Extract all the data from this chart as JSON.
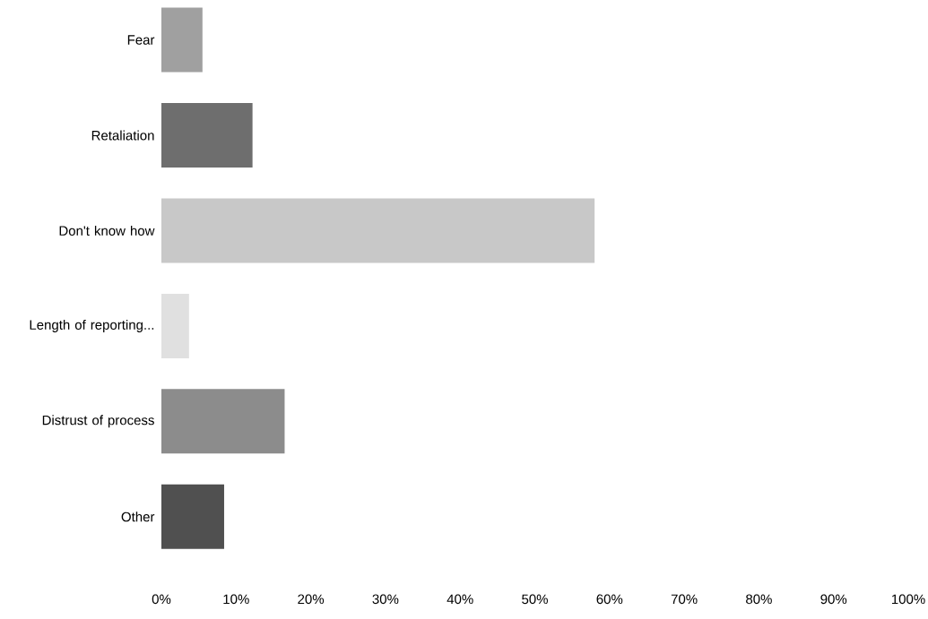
{
  "chart_data": {
    "type": "bar",
    "orientation": "horizontal",
    "categories": [
      "Fear",
      "Retaliation",
      "Don't know how",
      "Length of reporting...",
      "Distrust of process",
      "Other"
    ],
    "values": [
      5.5,
      12.2,
      58,
      3.7,
      16.5,
      8.4
    ],
    "colors": [
      "#a0a0a0",
      "#6e6e6e",
      "#c8c8c8",
      "#e0e0e0",
      "#8c8c8c",
      "#505050"
    ],
    "xlim": [
      0,
      100
    ],
    "xticks": [
      {
        "value": 0,
        "label": "0%"
      },
      {
        "value": 10,
        "label": "10%"
      },
      {
        "value": 20,
        "label": "20%"
      },
      {
        "value": 30,
        "label": "30%"
      },
      {
        "value": 40,
        "label": "40%"
      },
      {
        "value": 50,
        "label": "50%"
      },
      {
        "value": 60,
        "label": "60%"
      },
      {
        "value": 70,
        "label": "70%"
      },
      {
        "value": 80,
        "label": "80%"
      },
      {
        "value": 90,
        "label": "90%"
      },
      {
        "value": 100,
        "label": "100%"
      }
    ]
  }
}
